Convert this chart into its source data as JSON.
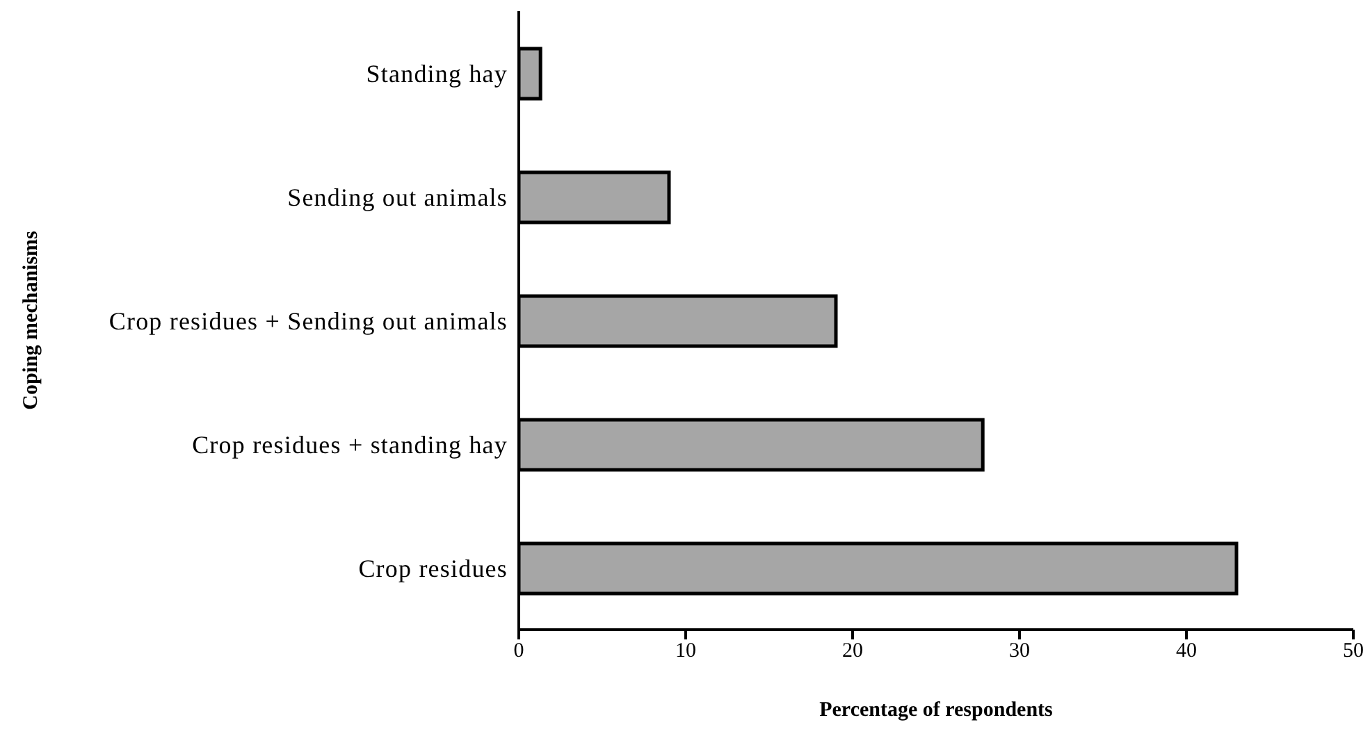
{
  "chart_data": {
    "type": "bar",
    "orientation": "horizontal",
    "xlabel": "Percentage of respondents",
    "ylabel": "Coping mechanisms",
    "categories": [
      "Standing hay",
      "Sending out animals",
      "Crop residues + Sending out animals",
      "Crop residues + standing hay",
      "Crop residues"
    ],
    "values": [
      1.3,
      9,
      19,
      27.8,
      43
    ],
    "color": "#a6a6a6",
    "xlim": [
      0,
      50
    ],
    "xticks": [
      0,
      10,
      20,
      30,
      40,
      50
    ],
    "grid": false,
    "legend": false
  }
}
